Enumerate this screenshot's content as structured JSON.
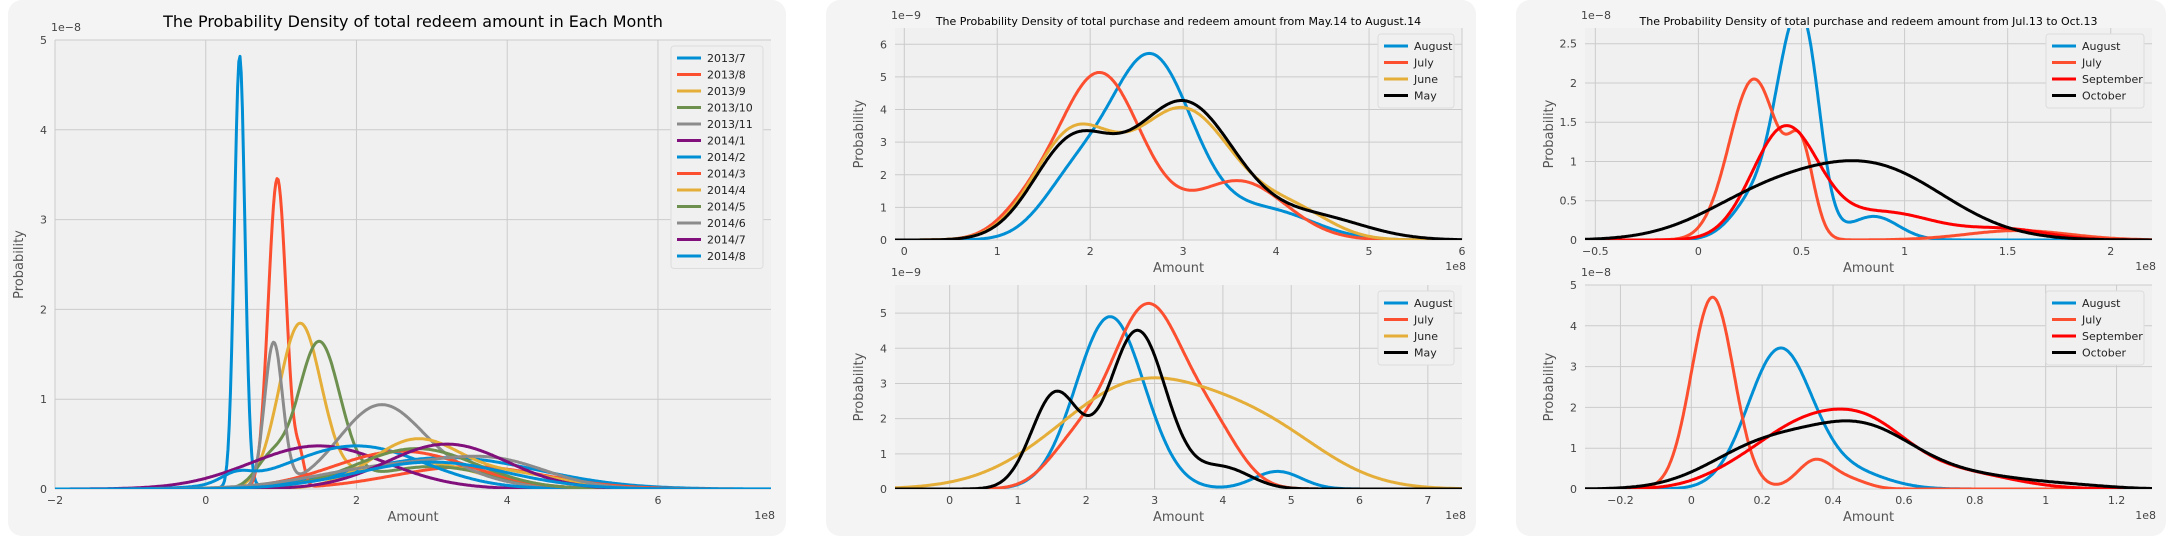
{
  "chart_data": [
    {
      "type": "line",
      "title": "The Probability Density of total redeem amount in Each Month",
      "xlabel": "Amount",
      "ylabel": "Probability",
      "x_offset_label": "1e8",
      "y_offset_label": "1e−8",
      "xlim": [
        -2,
        7.5
      ],
      "ylim": [
        0,
        5
      ],
      "x_ticks": [
        -2,
        0,
        2,
        4,
        6
      ],
      "y_ticks": [
        0,
        1,
        2,
        3,
        4,
        5
      ],
      "grid": true,
      "legend": "top-right",
      "series": [
        {
          "name": "2013/7",
          "color": "#008fd5",
          "peaks": [
            [
              0.45,
              4.8,
              0.07
            ],
            [
              3.2,
              0.35,
              1.2
            ]
          ]
        },
        {
          "name": "2013/8",
          "color": "#fc4f30",
          "peaks": [
            [
              0.95,
              3.45,
              0.12
            ],
            [
              1.25,
              0.3,
              0.06
            ],
            [
              3.5,
              0.25,
              1.0
            ]
          ]
        },
        {
          "name": "2013/9",
          "color": "#e5ae38",
          "peaks": [
            [
              1.25,
              1.8,
              0.28
            ],
            [
              2.8,
              0.3,
              0.8
            ]
          ]
        },
        {
          "name": "2013/10",
          "color": "#6d904f",
          "peaks": [
            [
              0.85,
              0.3,
              0.2
            ],
            [
              1.5,
              1.6,
              0.28
            ],
            [
              3.0,
              0.25,
              0.8
            ]
          ]
        },
        {
          "name": "2013/11",
          "color": "#8b8b8b",
          "peaks": [
            [
              0.9,
              1.6,
              0.12
            ],
            [
              2.3,
              0.9,
              0.55
            ],
            [
              3.3,
              0.15,
              0.6
            ]
          ]
        },
        {
          "name": "2014/1",
          "color": "#810f7c",
          "peaks": [
            [
              1.5,
              0.48,
              0.9
            ]
          ]
        },
        {
          "name": "2014/2",
          "color": "#008fd5",
          "peaks": [
            [
              0.4,
              0.1,
              0.2
            ],
            [
              2.0,
              0.48,
              0.9
            ]
          ]
        },
        {
          "name": "2014/3",
          "color": "#fc4f30",
          "peaks": [
            [
              2.6,
              0.42,
              0.9
            ]
          ]
        },
        {
          "name": "2014/4",
          "color": "#e5ae38",
          "peaks": [
            [
              2.8,
              0.55,
              0.6
            ],
            [
              4.2,
              0.15,
              0.6
            ]
          ]
        },
        {
          "name": "2014/5",
          "color": "#6d904f",
          "peaks": [
            [
              2.8,
              0.45,
              0.8
            ]
          ]
        },
        {
          "name": "2014/6",
          "color": "#8b8b8b",
          "peaks": [
            [
              2.5,
              0.25,
              1.0
            ],
            [
              3.9,
              0.25,
              0.7
            ]
          ]
        },
        {
          "name": "2014/7",
          "color": "#810f7c",
          "peaks": [
            [
              3.2,
              0.5,
              0.8
            ]
          ]
        },
        {
          "name": "2014/8",
          "color": "#008fd5",
          "peaks": [
            [
              3.0,
              0.3,
              1.0
            ]
          ]
        }
      ]
    },
    {
      "type": "line",
      "title": "The Probability Density of total purchase and redeem amount from May.14 to August.14",
      "xlabel": "Amount",
      "ylabel": "Probability",
      "x_offset_label": "1e8",
      "y_offset_label": "1e−9",
      "xlim": [
        -0.1,
        6
      ],
      "ylim": [
        0,
        6.5
      ],
      "x_ticks": [
        0,
        1,
        2,
        3,
        4,
        5,
        6
      ],
      "y_ticks": [
        0,
        1,
        2,
        3,
        4,
        5,
        6
      ],
      "grid": true,
      "legend": "top-right",
      "series": [
        {
          "name": "August",
          "color": "#008fd5",
          "peaks": [
            [
              2.65,
              5.6,
              0.45
            ],
            [
              1.8,
              1.5,
              0.35
            ],
            [
              3.9,
              0.9,
              0.5
            ]
          ]
        },
        {
          "name": "July",
          "color": "#fc4f30",
          "peaks": [
            [
              2.1,
              5.1,
              0.45
            ],
            [
              3.6,
              1.8,
              0.5
            ],
            [
              1.3,
              0.6,
              0.3
            ]
          ]
        },
        {
          "name": "June",
          "color": "#e5ae38",
          "peaks": [
            [
              1.8,
              3.1,
              0.42
            ],
            [
              3.0,
              4.0,
              0.55
            ],
            [
              4.2,
              0.8,
              0.4
            ]
          ]
        },
        {
          "name": "May",
          "color": "#000000",
          "peaks": [
            [
              1.8,
              2.85,
              0.42
            ],
            [
              3.0,
              4.2,
              0.55
            ],
            [
              4.4,
              0.7,
              0.55
            ]
          ]
        }
      ]
    },
    {
      "type": "line",
      "title": "",
      "xlabel": "Amount",
      "ylabel": "Probability",
      "x_offset_label": "1e8",
      "y_offset_label": "1e−9",
      "xlim": [
        -0.8,
        7.5
      ],
      "ylim": [
        0,
        5.8
      ],
      "x_ticks": [
        0,
        1,
        2,
        3,
        4,
        5,
        6,
        7
      ],
      "y_ticks": [
        0,
        1,
        2,
        3,
        4,
        5
      ],
      "grid": true,
      "legend": "top-right",
      "series": [
        {
          "name": "August",
          "color": "#008fd5",
          "peaks": [
            [
              2.35,
              4.9,
              0.5
            ],
            [
              4.8,
              0.5,
              0.35
            ]
          ]
        },
        {
          "name": "July",
          "color": "#fc4f30",
          "peaks": [
            [
              2.9,
              5.2,
              0.55
            ],
            [
              1.8,
              1.0,
              0.4
            ],
            [
              3.9,
              1.2,
              0.4
            ]
          ]
        },
        {
          "name": "June",
          "color": "#e5ae38",
          "peaks": [
            [
              2.8,
              3.0,
              1.2
            ],
            [
              4.7,
              1.2,
              0.9
            ]
          ]
        },
        {
          "name": "May",
          "color": "#000000",
          "peaks": [
            [
              1.55,
              2.7,
              0.35
            ],
            [
              2.75,
              4.5,
              0.42
            ],
            [
              4.0,
              0.6,
              0.4
            ]
          ]
        }
      ]
    },
    {
      "type": "line",
      "title": "The Probability Density of total purchase and redeem amount from Jul.13 to Oct.13",
      "xlabel": "Amount",
      "ylabel": "Probability",
      "x_offset_label": "1e8",
      "y_offset_label": "1e−8",
      "xlim": [
        -0.55,
        2.2
      ],
      "ylim": [
        0,
        2.7
      ],
      "x_ticks": [
        -0.5,
        0.0,
        0.5,
        1.0,
        1.5,
        2.0
      ],
      "y_ticks": [
        0.0,
        0.5,
        1.0,
        1.5,
        2.0,
        2.5
      ],
      "grid": true,
      "legend": "top-right",
      "series": [
        {
          "name": "August",
          "color": "#008fd5",
          "peaks": [
            [
              0.47,
              2.4,
              0.09
            ],
            [
              0.3,
              0.6,
              0.12
            ],
            [
              0.55,
              0.7,
              0.06
            ],
            [
              0.85,
              0.3,
              0.12
            ]
          ]
        },
        {
          "name": "July",
          "color": "#fc4f30",
          "peaks": [
            [
              0.27,
              2.05,
              0.12
            ],
            [
              0.5,
              1.0,
              0.06
            ],
            [
              1.55,
              0.12,
              0.25
            ]
          ]
        },
        {
          "name": "September",
          "color": "#ff0000",
          "peaks": [
            [
              0.42,
              1.4,
              0.16
            ],
            [
              0.9,
              0.35,
              0.25
            ],
            [
              1.5,
              0.13,
              0.2
            ]
          ]
        },
        {
          "name": "October",
          "color": "#000000",
          "peaks": [
            [
              0.3,
              0.45,
              0.3
            ],
            [
              0.85,
              0.9,
              0.35
            ]
          ]
        }
      ]
    },
    {
      "type": "line",
      "title": "",
      "xlabel": "Amount",
      "ylabel": "Probability",
      "x_offset_label": "1e8",
      "y_offset_label": "1e−8",
      "xlim": [
        -0.3,
        1.3
      ],
      "ylim": [
        0,
        5
      ],
      "x_ticks": [
        -0.2,
        0.0,
        0.2,
        0.4,
        0.6,
        0.8,
        1.0,
        1.2
      ],
      "y_ticks": [
        0,
        1,
        2,
        3,
        4,
        5
      ],
      "grid": true,
      "legend": "top-right",
      "series": [
        {
          "name": "August",
          "color": "#008fd5",
          "peaks": [
            [
              0.25,
              3.4,
              0.09
            ],
            [
              0.45,
              0.4,
              0.1
            ]
          ]
        },
        {
          "name": "July",
          "color": "#fc4f30",
          "peaks": [
            [
              0.06,
              4.7,
              0.06
            ],
            [
              0.35,
              0.7,
              0.05
            ],
            [
              0.45,
              0.2,
              0.05
            ]
          ]
        },
        {
          "name": "September",
          "color": "#ff0000",
          "peaks": [
            [
              0.3,
              1.35,
              0.13
            ],
            [
              0.5,
              1.3,
              0.12
            ],
            [
              0.75,
              0.4,
              0.15
            ],
            [
              0.1,
              0.2,
              0.1
            ]
          ]
        },
        {
          "name": "October",
          "color": "#000000",
          "peaks": [
            [
              0.2,
              1.0,
              0.15
            ],
            [
              0.48,
              1.4,
              0.15
            ],
            [
              0.8,
              0.3,
              0.18
            ],
            [
              1.1,
              0.04,
              0.1
            ]
          ]
        }
      ]
    }
  ]
}
